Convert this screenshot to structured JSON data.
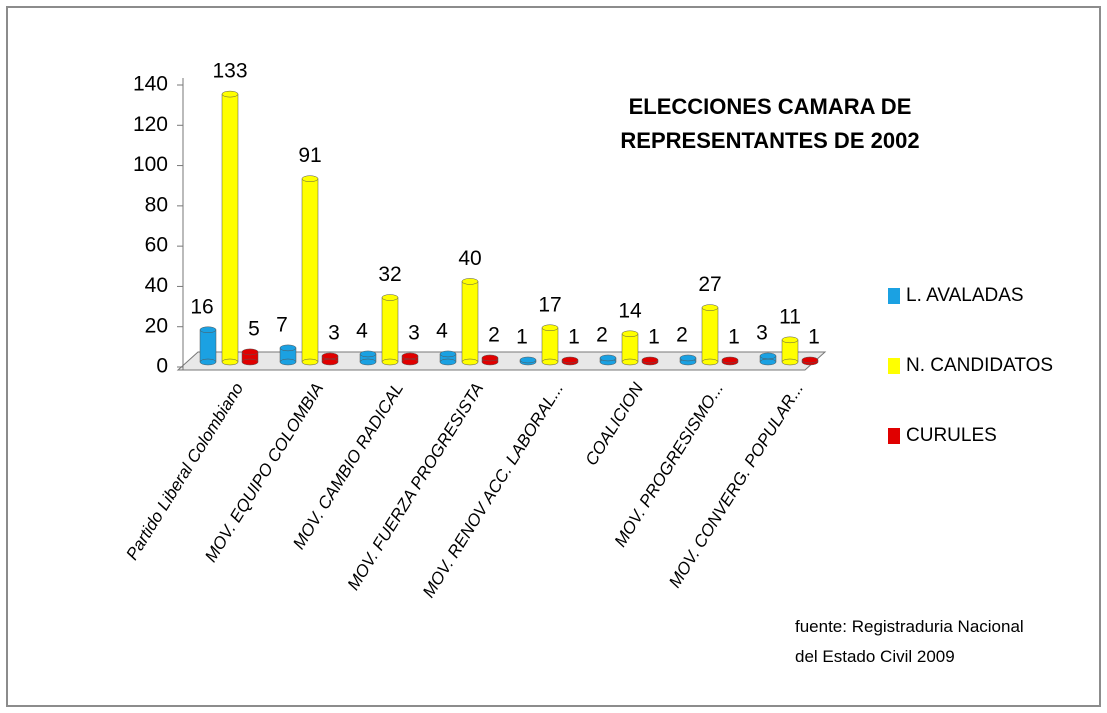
{
  "chart_data": {
    "type": "bar",
    "title": "ELECCIONES CAMARA DE REPRESENTANTES DE 2002",
    "annotation": "fuente: Registraduria Nacional del Estado Civil 2009",
    "categories": [
      "Partido Liberal Colombiano",
      "MOV. EQUIPO COLOMBIA",
      "MOV. CAMBIO RADICAL",
      "MOV. FUERZA PROGRESISTA",
      "MOV. RENOV ACC. LABORAL...",
      "COALICION",
      "MOV. PROGRESISMO...",
      "MOV. CONVERG. POPULAR..."
    ],
    "series": [
      {
        "name": "L. AVALADAS",
        "color": "#1ba1e2",
        "values": [
          16,
          7,
          4,
          4,
          1,
          2,
          2,
          3
        ]
      },
      {
        "name": "N. CANDIDATOS",
        "color": "#ffff00",
        "values": [
          133,
          91,
          32,
          40,
          17,
          14,
          27,
          11
        ]
      },
      {
        "name": "CURULES",
        "color": "#e00000",
        "values": [
          5,
          3,
          3,
          2,
          1,
          1,
          1,
          1
        ]
      }
    ],
    "ylim": [
      0,
      140
    ],
    "yticks": [
      0,
      20,
      40,
      60,
      80,
      100,
      120,
      140
    ],
    "legend": "right"
  }
}
